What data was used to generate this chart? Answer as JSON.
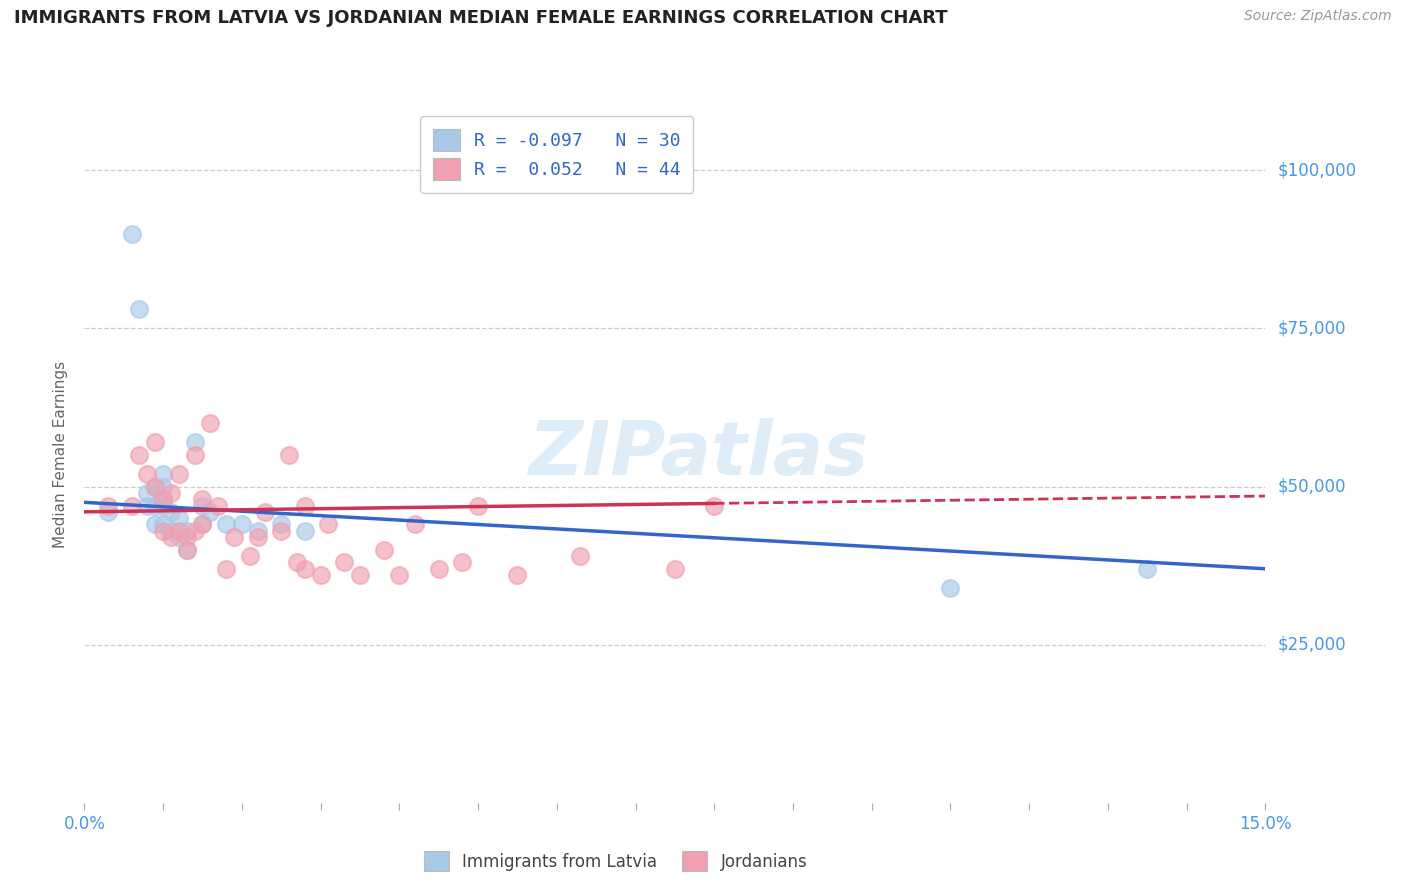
{
  "title": "IMMIGRANTS FROM LATVIA VS JORDANIAN MEDIAN FEMALE EARNINGS CORRELATION CHART",
  "source": "Source: ZipAtlas.com",
  "ylabel": "Median Female Earnings",
  "xlim": [
    0.0,
    0.15
  ],
  "ylim": [
    0,
    110000
  ],
  "yticks": [
    0,
    25000,
    50000,
    75000,
    100000
  ],
  "background_color": "#ffffff",
  "grid_color": "#cccccc",
  "watermark": "ZIPatlas",
  "blue_color": "#A8C8E8",
  "pink_color": "#F0A0B0",
  "line_blue": "#3366CC",
  "line_pink": "#CC3355",
  "axis_label_color": "#4499EE",
  "title_color": "#222222",
  "blue_scatter_x": [
    0.003,
    0.006,
    0.007,
    0.008,
    0.008,
    0.009,
    0.009,
    0.009,
    0.01,
    0.01,
    0.01,
    0.01,
    0.01,
    0.011,
    0.011,
    0.012,
    0.012,
    0.013,
    0.013,
    0.014,
    0.015,
    0.015,
    0.016,
    0.018,
    0.02,
    0.022,
    0.025,
    0.028,
    0.11,
    0.135
  ],
  "blue_scatter_y": [
    46000,
    90000,
    78000,
    47000,
    49000,
    44000,
    47000,
    50000,
    44000,
    47000,
    48000,
    50000,
    52000,
    43000,
    46000,
    42000,
    45000,
    40000,
    43000,
    57000,
    44000,
    47000,
    46000,
    44000,
    44000,
    43000,
    44000,
    43000,
    34000,
    37000
  ],
  "pink_scatter_x": [
    0.003,
    0.006,
    0.007,
    0.008,
    0.009,
    0.009,
    0.01,
    0.01,
    0.011,
    0.011,
    0.012,
    0.012,
    0.013,
    0.013,
    0.014,
    0.014,
    0.015,
    0.015,
    0.016,
    0.017,
    0.018,
    0.019,
    0.021,
    0.022,
    0.023,
    0.025,
    0.026,
    0.027,
    0.028,
    0.028,
    0.03,
    0.031,
    0.033,
    0.035,
    0.038,
    0.04,
    0.042,
    0.045,
    0.048,
    0.05,
    0.055,
    0.063,
    0.075,
    0.08
  ],
  "pink_scatter_y": [
    47000,
    47000,
    55000,
    52000,
    50000,
    57000,
    43000,
    48000,
    42000,
    49000,
    43000,
    52000,
    40000,
    42000,
    43000,
    55000,
    44000,
    48000,
    60000,
    47000,
    37000,
    42000,
    39000,
    42000,
    46000,
    43000,
    55000,
    38000,
    37000,
    47000,
    36000,
    44000,
    38000,
    36000,
    40000,
    36000,
    44000,
    37000,
    38000,
    47000,
    36000,
    39000,
    37000,
    47000
  ],
  "blue_line_x0": 0.0,
  "blue_line_y0": 47500,
  "blue_line_x1": 0.15,
  "blue_line_y1": 37000,
  "pink_line_x0": 0.0,
  "pink_line_y0": 46000,
  "pink_line_solid_x1": 0.08,
  "pink_line_x1": 0.15,
  "pink_line_y1": 48500
}
